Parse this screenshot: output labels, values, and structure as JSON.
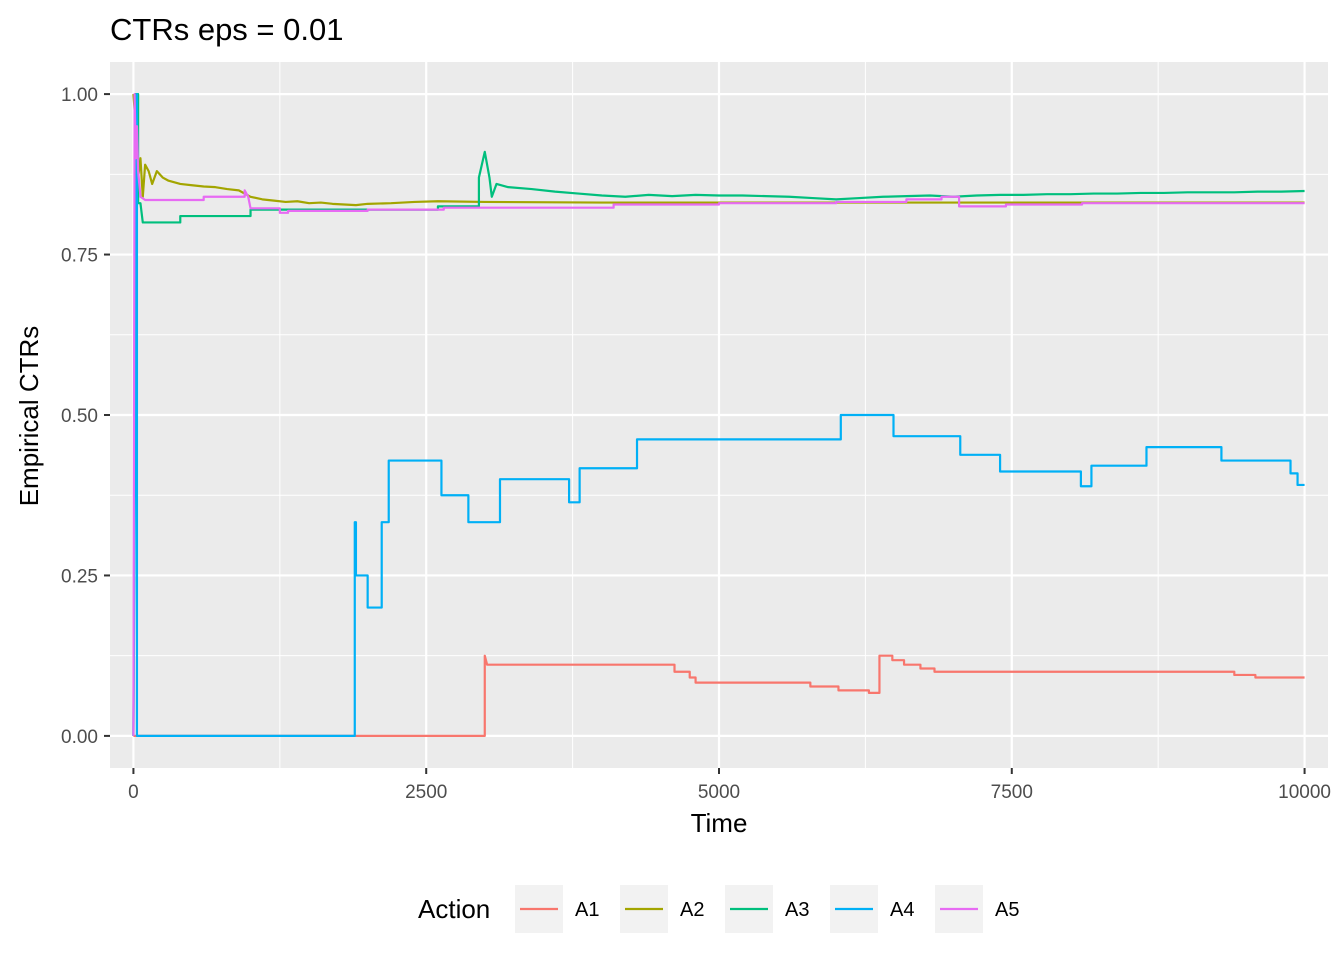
{
  "chart_data": {
    "type": "line",
    "title": "CTRs eps = 0.01",
    "xlabel": "Time",
    "ylabel": "Empirical CTRs",
    "xlim": [
      -200,
      10200
    ],
    "ylim": [
      -0.05,
      1.05
    ],
    "x_ticks": [
      0,
      2500,
      5000,
      7500,
      10000
    ],
    "x_tick_labels": [
      "0",
      "2500",
      "5000",
      "7500",
      "10000"
    ],
    "y_ticks": [
      0,
      0.25,
      0.5,
      0.75,
      1.0
    ],
    "y_tick_labels": [
      "0.00",
      "0.25",
      "0.50",
      "0.75",
      "1.00"
    ],
    "grid": true,
    "legend": {
      "title": "Action",
      "position": "bottom"
    },
    "colors": {
      "panel": "#ebebeb",
      "grid": "#ffffff"
    },
    "series": [
      {
        "name": "A1",
        "color": "#F8766D",
        "points": [
          [
            0,
            0
          ],
          [
            3000,
            0
          ],
          [
            3000,
            0.125
          ],
          [
            3020,
            0.111
          ],
          [
            4620,
            0.111
          ],
          [
            4620,
            0.1
          ],
          [
            4750,
            0.1
          ],
          [
            4750,
            0.091
          ],
          [
            4800,
            0.091
          ],
          [
            4800,
            0.083
          ],
          [
            5780,
            0.083
          ],
          [
            5780,
            0.077
          ],
          [
            6020,
            0.077
          ],
          [
            6020,
            0.071
          ],
          [
            6280,
            0.071
          ],
          [
            6280,
            0.067
          ],
          [
            6370,
            0.067
          ],
          [
            6370,
            0.125
          ],
          [
            6480,
            0.125
          ],
          [
            6480,
            0.118
          ],
          [
            6580,
            0.118
          ],
          [
            6580,
            0.111
          ],
          [
            6720,
            0.111
          ],
          [
            6720,
            0.105
          ],
          [
            6840,
            0.105
          ],
          [
            6840,
            0.1
          ],
          [
            9400,
            0.1
          ],
          [
            9400,
            0.095
          ],
          [
            9580,
            0.095
          ],
          [
            9580,
            0.091
          ],
          [
            10000,
            0.091
          ]
        ]
      },
      {
        "name": "A2",
        "color": "#A3A500",
        "points": [
          [
            0,
            1
          ],
          [
            20,
            0.95
          ],
          [
            40,
            0.87
          ],
          [
            60,
            0.9
          ],
          [
            80,
            0.84
          ],
          [
            100,
            0.89
          ],
          [
            130,
            0.88
          ],
          [
            160,
            0.86
          ],
          [
            200,
            0.88
          ],
          [
            250,
            0.87
          ],
          [
            300,
            0.865
          ],
          [
            400,
            0.86
          ],
          [
            500,
            0.858
          ],
          [
            600,
            0.856
          ],
          [
            700,
            0.855
          ],
          [
            800,
            0.852
          ],
          [
            900,
            0.85
          ],
          [
            1000,
            0.84
          ],
          [
            1100,
            0.836
          ],
          [
            1200,
            0.834
          ],
          [
            1300,
            0.832
          ],
          [
            1400,
            0.833
          ],
          [
            1500,
            0.83
          ],
          [
            1600,
            0.831
          ],
          [
            1700,
            0.829
          ],
          [
            1800,
            0.828
          ],
          [
            1900,
            0.827
          ],
          [
            2000,
            0.829
          ],
          [
            2200,
            0.83
          ],
          [
            2400,
            0.832
          ],
          [
            2600,
            0.833
          ],
          [
            3000,
            0.832
          ],
          [
            4000,
            0.831
          ],
          [
            6000,
            0.831
          ],
          [
            8000,
            0.831
          ],
          [
            10000,
            0.831
          ]
        ]
      },
      {
        "name": "A3",
        "color": "#00BF7D",
        "points": [
          [
            0,
            0
          ],
          [
            20,
            1
          ],
          [
            40,
            1
          ],
          [
            40,
            0.83
          ],
          [
            60,
            0.83
          ],
          [
            80,
            0.8
          ],
          [
            400,
            0.8
          ],
          [
            400,
            0.81
          ],
          [
            1000,
            0.81
          ],
          [
            1000,
            0.82
          ],
          [
            2600,
            0.82
          ],
          [
            2600,
            0.825
          ],
          [
            2950,
            0.825
          ],
          [
            2950,
            0.87
          ],
          [
            3000,
            0.91
          ],
          [
            3040,
            0.87
          ],
          [
            3060,
            0.84
          ],
          [
            3100,
            0.86
          ],
          [
            3200,
            0.855
          ],
          [
            3400,
            0.852
          ],
          [
            3600,
            0.848
          ],
          [
            3800,
            0.845
          ],
          [
            4000,
            0.842
          ],
          [
            4200,
            0.84
          ],
          [
            4400,
            0.843
          ],
          [
            4600,
            0.841
          ],
          [
            4800,
            0.843
          ],
          [
            5000,
            0.842
          ],
          [
            5200,
            0.842
          ],
          [
            5400,
            0.841
          ],
          [
            5600,
            0.84
          ],
          [
            5800,
            0.838
          ],
          [
            6000,
            0.836
          ],
          [
            6200,
            0.838
          ],
          [
            6400,
            0.84
          ],
          [
            6600,
            0.841
          ],
          [
            6800,
            0.842
          ],
          [
            7000,
            0.84
          ],
          [
            7200,
            0.842
          ],
          [
            7400,
            0.843
          ],
          [
            7600,
            0.843
          ],
          [
            7800,
            0.844
          ],
          [
            8000,
            0.844
          ],
          [
            8200,
            0.845
          ],
          [
            8400,
            0.845
          ],
          [
            8600,
            0.846
          ],
          [
            8800,
            0.846
          ],
          [
            9000,
            0.847
          ],
          [
            9200,
            0.847
          ],
          [
            9400,
            0.847
          ],
          [
            9600,
            0.848
          ],
          [
            9800,
            0.848
          ],
          [
            10000,
            0.849
          ]
        ]
      },
      {
        "name": "A4",
        "color": "#00B0F6",
        "points": [
          [
            0,
            0
          ],
          [
            30,
            1
          ],
          [
            30,
            0
          ],
          [
            1890,
            0
          ],
          [
            1890,
            0.333
          ],
          [
            1900,
            0.333
          ],
          [
            1900,
            0.25
          ],
          [
            2000,
            0.25
          ],
          [
            2000,
            0.2
          ],
          [
            2120,
            0.2
          ],
          [
            2120,
            0.333
          ],
          [
            2180,
            0.333
          ],
          [
            2180,
            0.429
          ],
          [
            2630,
            0.429
          ],
          [
            2630,
            0.375
          ],
          [
            2860,
            0.375
          ],
          [
            2860,
            0.333
          ],
          [
            3130,
            0.333
          ],
          [
            3130,
            0.4
          ],
          [
            3720,
            0.4
          ],
          [
            3720,
            0.364
          ],
          [
            3810,
            0.364
          ],
          [
            3810,
            0.417
          ],
          [
            4300,
            0.417
          ],
          [
            4300,
            0.462
          ],
          [
            6040,
            0.462
          ],
          [
            6040,
            0.5
          ],
          [
            6490,
            0.5
          ],
          [
            6490,
            0.467
          ],
          [
            7060,
            0.467
          ],
          [
            7060,
            0.438
          ],
          [
            7400,
            0.438
          ],
          [
            7400,
            0.412
          ],
          [
            8090,
            0.412
          ],
          [
            8090,
            0.389
          ],
          [
            8180,
            0.389
          ],
          [
            8180,
            0.421
          ],
          [
            8650,
            0.421
          ],
          [
            8650,
            0.45
          ],
          [
            9290,
            0.45
          ],
          [
            9290,
            0.429
          ],
          [
            9880,
            0.429
          ],
          [
            9880,
            0.409
          ],
          [
            9940,
            0.409
          ],
          [
            9940,
            0.391
          ],
          [
            10000,
            0.391
          ]
        ]
      },
      {
        "name": "A5",
        "color": "#E76BF3",
        "points": [
          [
            0,
            0
          ],
          [
            10,
            1
          ],
          [
            20,
            0.9
          ],
          [
            30,
            0.95
          ],
          [
            40,
            0.88
          ],
          [
            60,
            0.84
          ],
          [
            100,
            0.835
          ],
          [
            600,
            0.835
          ],
          [
            600,
            0.84
          ],
          [
            950,
            0.84
          ],
          [
            950,
            0.85
          ],
          [
            980,
            0.84
          ],
          [
            1000,
            0.822
          ],
          [
            1250,
            0.822
          ],
          [
            1250,
            0.815
          ],
          [
            1320,
            0.815
          ],
          [
            1320,
            0.818
          ],
          [
            2000,
            0.818
          ],
          [
            2000,
            0.82
          ],
          [
            2650,
            0.82
          ],
          [
            2650,
            0.823
          ],
          [
            4100,
            0.823
          ],
          [
            4100,
            0.828
          ],
          [
            5000,
            0.828
          ],
          [
            5000,
            0.83
          ],
          [
            6000,
            0.83
          ],
          [
            6000,
            0.832
          ],
          [
            6600,
            0.832
          ],
          [
            6600,
            0.836
          ],
          [
            6900,
            0.836
          ],
          [
            6900,
            0.84
          ],
          [
            7050,
            0.84
          ],
          [
            7050,
            0.825
          ],
          [
            7450,
            0.825
          ],
          [
            7450,
            0.828
          ],
          [
            8100,
            0.828
          ],
          [
            8100,
            0.83
          ],
          [
            10000,
            0.83
          ]
        ]
      }
    ]
  }
}
